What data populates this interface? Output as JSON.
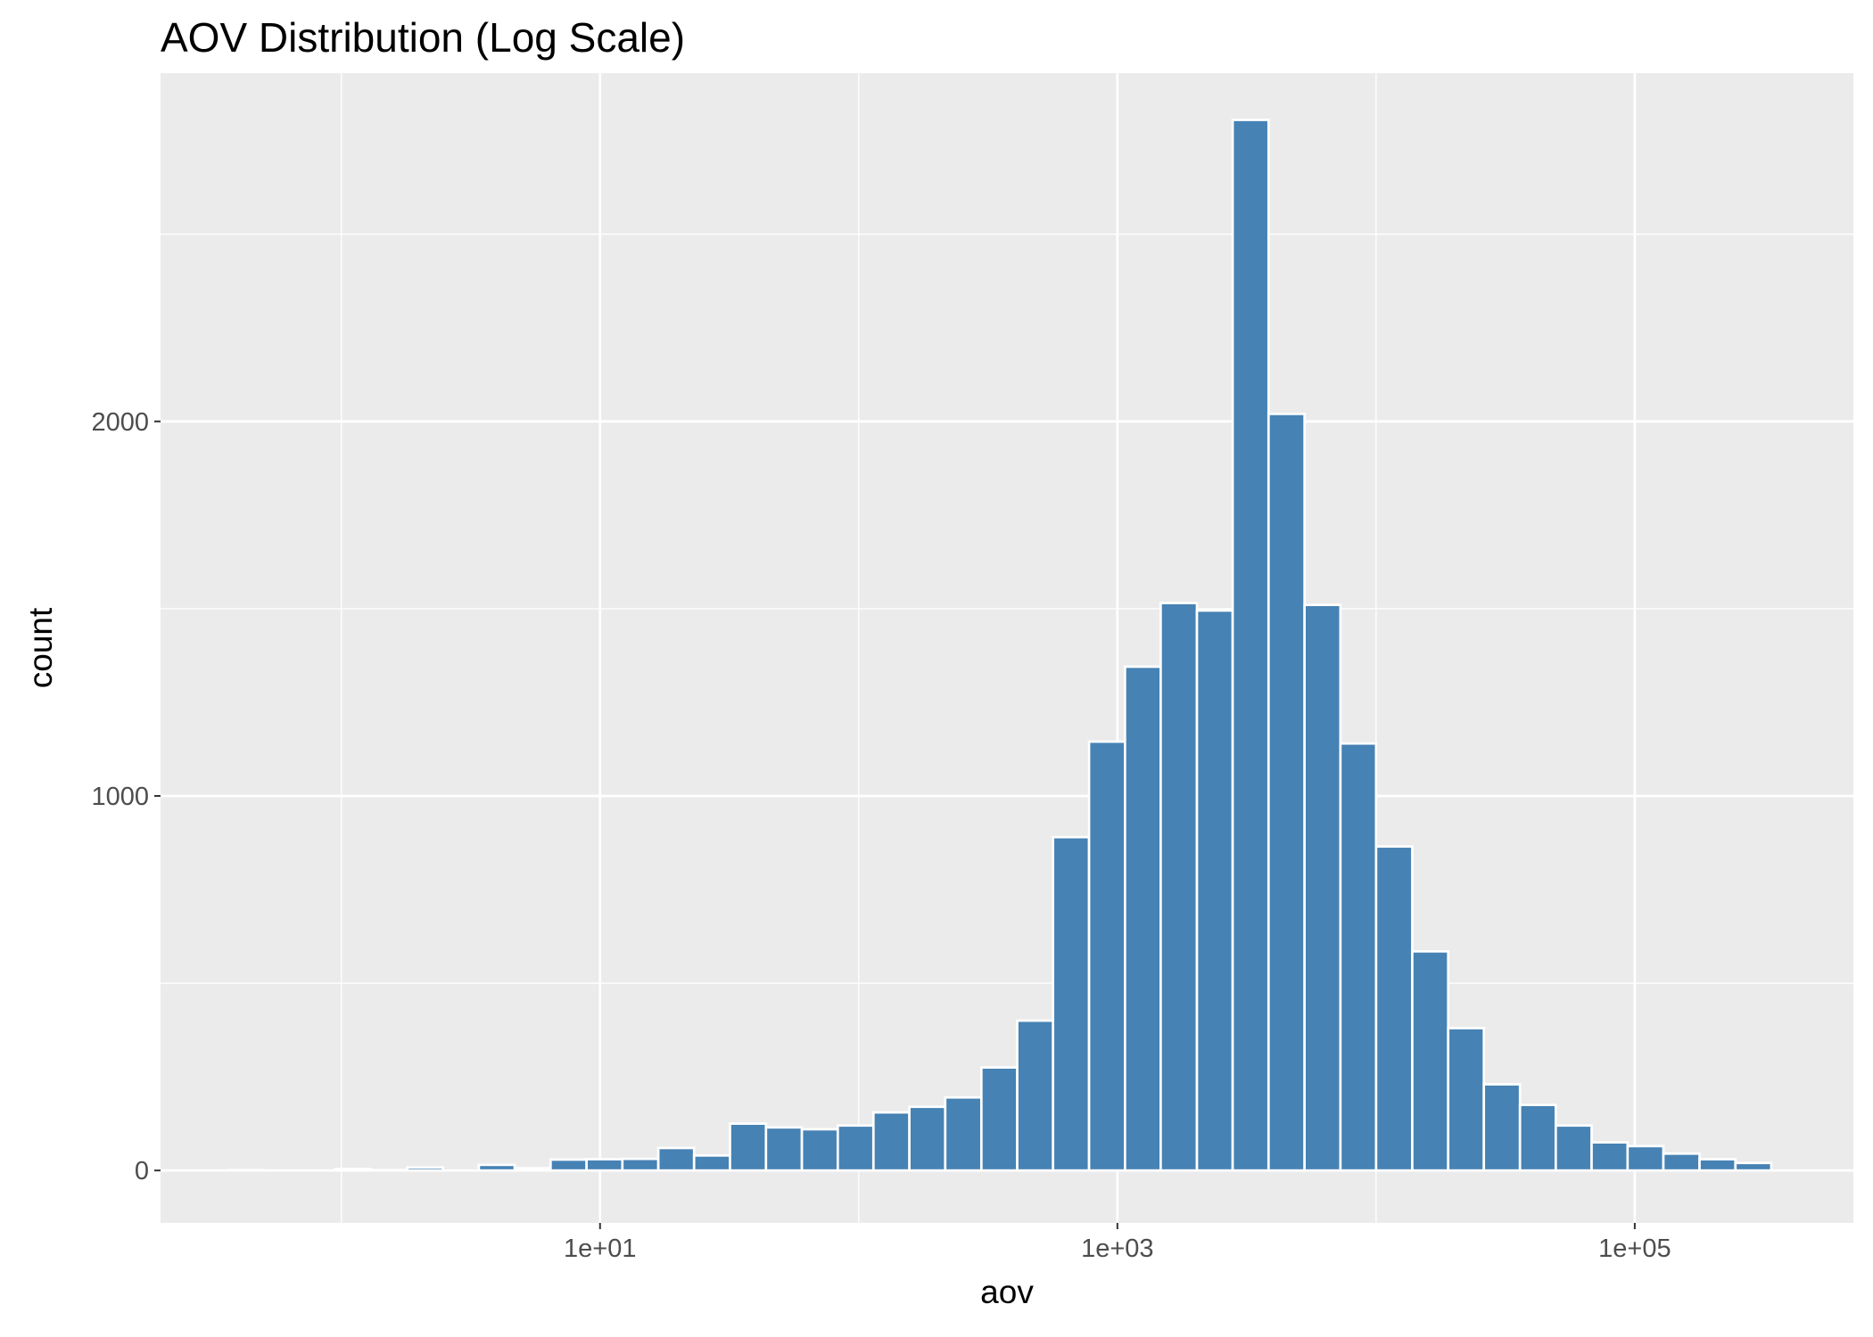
{
  "chart_data": {
    "type": "bar",
    "title": "AOV Distribution (Log Scale)",
    "xlabel": "aov",
    "ylabel": "count",
    "x_scale": "log10",
    "xlim": [
      0.2,
      700000
    ],
    "ylim": [
      -140,
      2930
    ],
    "x_ticks": [
      {
        "value": 10,
        "label": "1e+01"
      },
      {
        "value": 1000,
        "label": "1e+03"
      },
      {
        "value": 100000,
        "label": "1e+05"
      }
    ],
    "y_ticks": [
      {
        "value": 0,
        "label": "0"
      },
      {
        "value": 1000,
        "label": "1000"
      },
      {
        "value": 2000,
        "label": "2000"
      }
    ],
    "grid": true,
    "panel_background": "#ebebeb",
    "grid_color": "#ffffff",
    "bar_fill": "#4682b4",
    "bar_outline": "#ffffff",
    "bins": {
      "left_edges": [
        0.363,
        0.5,
        0.688,
        0.947,
        1.3,
        1.8,
        2.47,
        3.4,
        4.68,
        6.44,
        8.87,
        12.2,
        16.8,
        23.1,
        31.8,
        43.8,
        60.3,
        83,
        114,
        157,
        216,
        298,
        410,
        564,
        777,
        1070,
        1470,
        2030,
        2790,
        3840,
        5290,
        7280,
        10000,
        13800,
        19000,
        26100,
        36000,
        49500,
        68100,
        93800,
        129000,
        178000,
        245000
      ],
      "right_edges": [
        0.5,
        0.688,
        0.947,
        1.3,
        1.8,
        2.47,
        3.4,
        4.68,
        6.44,
        8.87,
        12.2,
        16.8,
        23.1,
        31.8,
        43.8,
        60.3,
        83,
        114,
        157,
        216,
        298,
        410,
        564,
        777,
        1070,
        1470,
        2030,
        2790,
        3840,
        5290,
        7280,
        10000,
        13800,
        19000,
        26100,
        36000,
        49500,
        68100,
        93800,
        129000,
        178000,
        245000,
        337000
      ],
      "counts": [
        1,
        0,
        0,
        4,
        1,
        8,
        0,
        15,
        6,
        29,
        30,
        31,
        60,
        40,
        125,
        115,
        110,
        120,
        155,
        170,
        195,
        275,
        400,
        890,
        1145,
        1345,
        1515,
        1495,
        2805,
        2020,
        1510,
        1140,
        865,
        585,
        380,
        230,
        175,
        120,
        75,
        65,
        45,
        30,
        20
      ]
    }
  }
}
